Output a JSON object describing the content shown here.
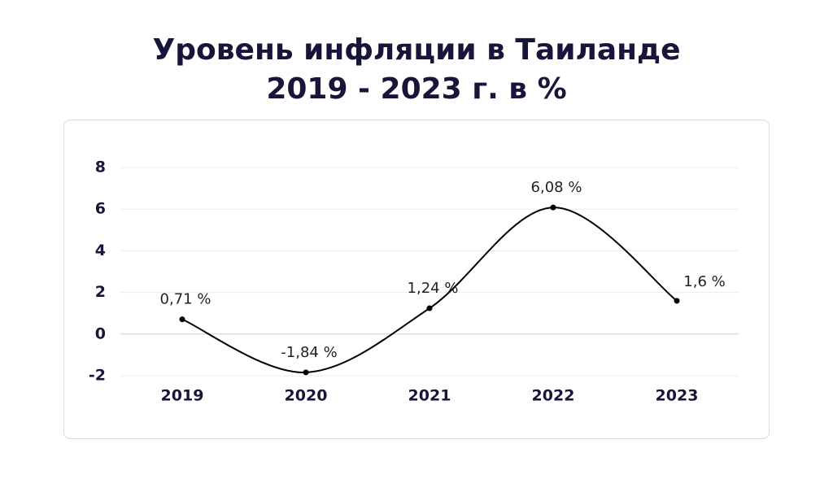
{
  "chart_data": {
    "type": "line",
    "title": [
      "Уровень инфляции в Таиланде",
      "2019 - 2023 г. в %"
    ],
    "categories": [
      "2019",
      "2020",
      "2021",
      "2022",
      "2023"
    ],
    "values": [
      0.71,
      -1.84,
      1.24,
      6.08,
      1.6
    ],
    "value_labels": [
      "0,71 %",
      "-1,84 %",
      "1,24 %",
      "6,08 %",
      "1,6 %"
    ],
    "color": "#000000",
    "ylim": [
      -2,
      8
    ],
    "yticks": [
      -2,
      0,
      2,
      4,
      6,
      8
    ],
    "grid": true
  }
}
